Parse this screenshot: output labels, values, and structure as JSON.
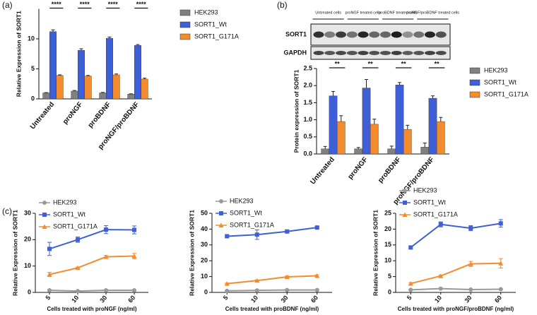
{
  "chart_data": [
    {
      "type": "bar",
      "panel_label": "(a)",
      "ylabel": "Relative Expression of SORT1",
      "categories": [
        "Untreated",
        "proNGF",
        "proBDNF",
        "proNGF/proBDNF"
      ],
      "series": [
        {
          "name": "HEK293",
          "color": "#808080",
          "values": [
            1.0,
            1.3,
            1.0,
            0.8
          ],
          "errors": [
            0.05,
            0.1,
            0.08,
            0.05
          ]
        },
        {
          "name": "SORT1_Wt",
          "color": "#3f5fd8",
          "values": [
            11.2,
            8.1,
            10.1,
            8.9
          ],
          "errors": [
            0.3,
            0.25,
            0.2,
            0.15
          ]
        },
        {
          "name": "SORT1_G171A",
          "color": "#f28c2e",
          "values": [
            3.9,
            3.8,
            4.0,
            3.3
          ],
          "errors": [
            0.1,
            0.1,
            0.15,
            0.15
          ]
        }
      ],
      "significance": [
        "****",
        "****",
        "****",
        "****"
      ],
      "ylim": [
        0,
        15
      ],
      "yticks": [
        0,
        5,
        10
      ]
    },
    {
      "type": "bar",
      "panel_label": "(b)",
      "ylabel": "Protein expression of SORT1",
      "blot": {
        "lanes": [
          "Untreated cells",
          "proNGF treated cells",
          "proBDNF treated cells",
          "proNGF/proBDNF treated cells"
        ],
        "rows": [
          "SORT1",
          "GAPDH"
        ]
      },
      "categories": [
        "Untreated",
        "proNGF",
        "proBDNF",
        "proNGF/proBDNF"
      ],
      "series": [
        {
          "name": "HEK293",
          "color": "#808080",
          "values": [
            0.15,
            0.15,
            0.15,
            0.2
          ],
          "errors": [
            0.07,
            0.04,
            0.08,
            0.12
          ]
        },
        {
          "name": "SORT1_Wt",
          "color": "#3f5fd8",
          "values": [
            1.7,
            1.93,
            2.02,
            1.63
          ],
          "errors": [
            0.13,
            0.25,
            0.07,
            0.07
          ]
        },
        {
          "name": "SORT1_G171A",
          "color": "#f28c2e",
          "values": [
            0.95,
            0.87,
            0.72,
            0.95
          ],
          "errors": [
            0.17,
            0.15,
            0.12,
            0.12
          ]
        }
      ],
      "significance": [
        "**",
        "**",
        "**",
        "**"
      ],
      "ylim": [
        0,
        2.5
      ],
      "yticks": [
        {
          "value": 0,
          "label": "0.0"
        },
        0.5,
        {
          "value": 1,
          "label": "1.0"
        },
        1.5,
        {
          "value": 2,
          "label": "2.0"
        },
        2.5
      ]
    },
    {
      "type": "line",
      "panel_label": "(c)",
      "ylabel": "Relative Expression of SORT1",
      "xlabel": "Cells treated with proNGF (ng/ml)",
      "categories": [
        "5",
        "10",
        "30",
        "60"
      ],
      "series": [
        {
          "name": "HEK293",
          "color": "#999999",
          "marker": "circle",
          "values": [
            0.8,
            0.5,
            0.8,
            0.8
          ],
          "errors": [
            0.2,
            0.2,
            0.2,
            0.2
          ]
        },
        {
          "name": "SORT1_Wt",
          "color": "#3f5fd8",
          "marker": "square",
          "values": [
            16.5,
            20,
            23.8,
            23.7
          ],
          "errors": [
            2.5,
            1,
            1.5,
            1.5
          ]
        },
        {
          "name": "SORT1_G171A",
          "color": "#f28c2e",
          "marker": "triangle",
          "values": [
            6.8,
            9.3,
            13.5,
            13.8
          ],
          "errors": [
            0.8,
            0.3,
            0.5,
            1
          ]
        }
      ],
      "ylim": [
        0,
        30
      ],
      "yticks": [
        0,
        10,
        20,
        30
      ]
    },
    {
      "type": "line",
      "ylabel": "Relative Expression of SORT1",
      "xlabel": "Cells treated with proBDNF (ng/ml)",
      "categories": [
        "5",
        "10",
        "30",
        "60"
      ],
      "series": [
        {
          "name": "HEK293",
          "color": "#999999",
          "marker": "circle",
          "values": [
            1,
            1.3,
            1.5,
            1.5
          ],
          "errors": [
            0.2,
            0.2,
            0.2,
            0.2
          ]
        },
        {
          "name": "SORT1_Wt",
          "color": "#3f5fd8",
          "marker": "square",
          "values": [
            35.5,
            36.5,
            38.5,
            41
          ],
          "errors": [
            0.8,
            3,
            1,
            0.6
          ]
        },
        {
          "name": "SORT1_G171A",
          "color": "#f28c2e",
          "marker": "triangle",
          "values": [
            5.5,
            7.5,
            9.8,
            10.5
          ],
          "errors": [
            0.4,
            0.4,
            0.6,
            0.6
          ]
        }
      ],
      "ylim": [
        0,
        50
      ],
      "yticks": [
        0,
        10,
        20,
        30,
        40,
        50
      ]
    },
    {
      "type": "line",
      "ylabel": "Relative Expression of SORT1",
      "xlabel": "Cells treated with proNGF/proBDNF (ng/ml)",
      "categories": [
        "5",
        "10",
        "30",
        "60"
      ],
      "series": [
        {
          "name": "HEK293",
          "color": "#999999",
          "marker": "circle",
          "values": [
            0.8,
            1.2,
            0.9,
            1
          ],
          "errors": [
            0.1,
            0.1,
            0.1,
            0.1
          ]
        },
        {
          "name": "SORT1_Wt",
          "color": "#3f5fd8",
          "marker": "square",
          "values": [
            14.2,
            21.5,
            20.3,
            21.8
          ],
          "errors": [
            0.5,
            0.8,
            0.8,
            1.2
          ]
        },
        {
          "name": "SORT1_G171A",
          "color": "#f28c2e",
          "marker": "triangle",
          "values": [
            2.8,
            5.2,
            9,
            9.2
          ],
          "errors": [
            0.3,
            0.3,
            0.8,
            1.5
          ]
        }
      ],
      "ylim": [
        0,
        25
      ],
      "yticks": [
        0,
        5,
        10,
        15,
        20,
        25
      ]
    }
  ]
}
